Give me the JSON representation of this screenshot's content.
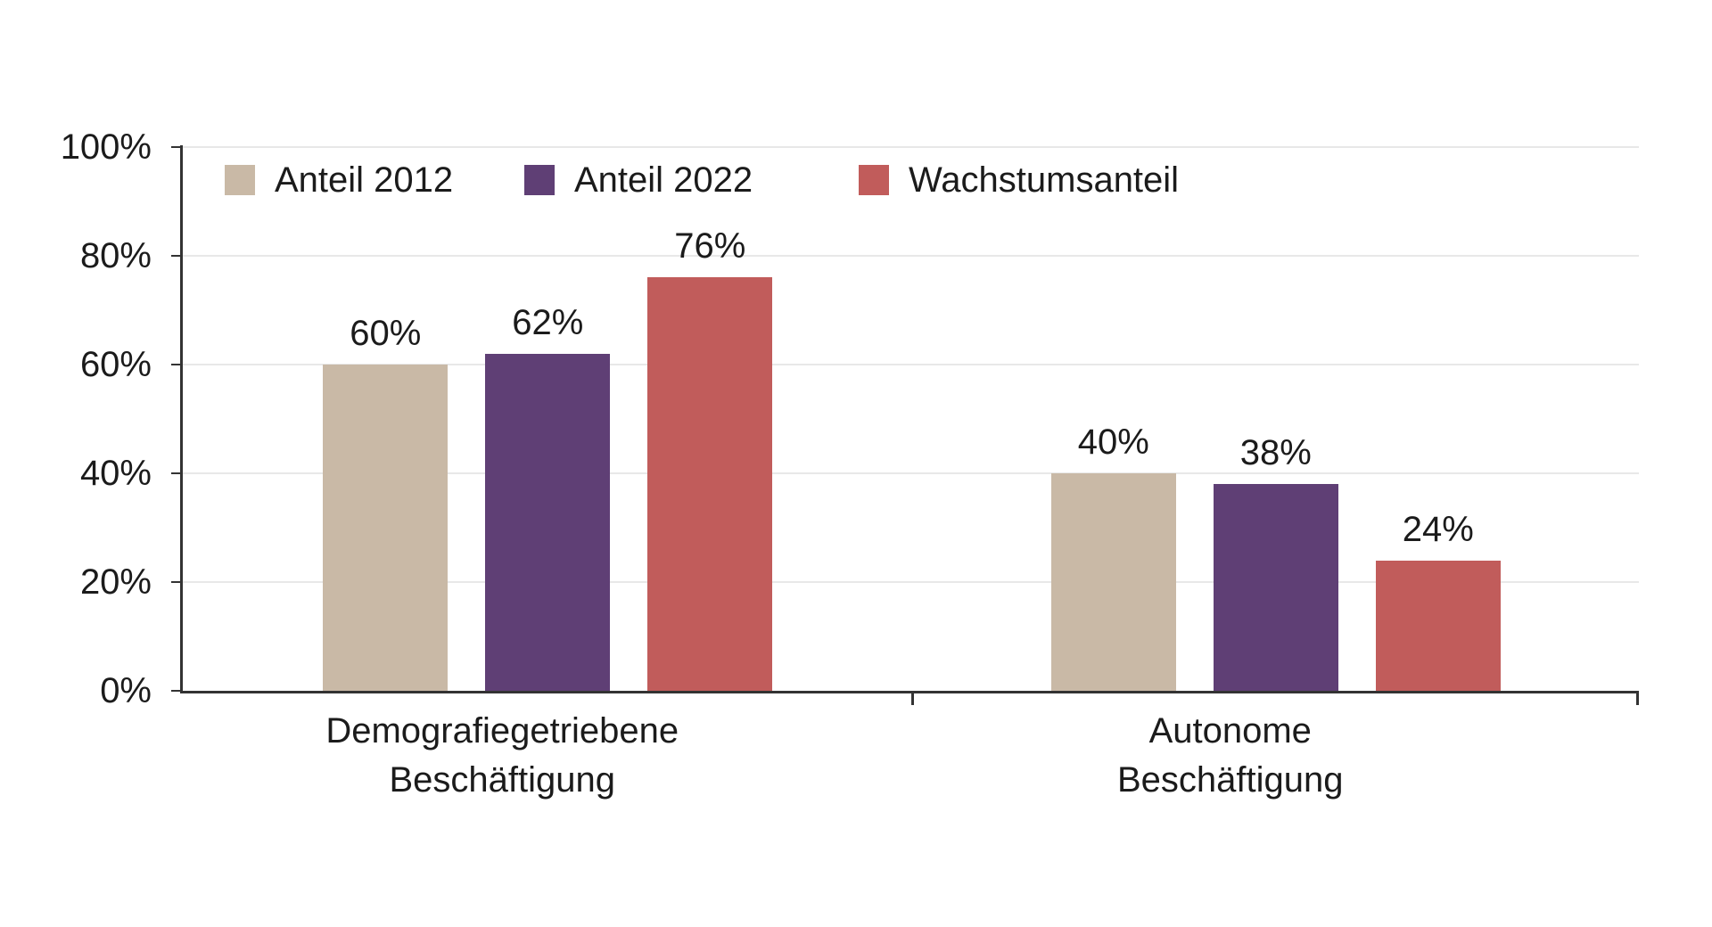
{
  "chart_data": {
    "type": "bar",
    "title": "",
    "xlabel": "",
    "ylabel": "",
    "grid": "horizontal",
    "legend_position": "top-left-inside",
    "background": "#ffffff",
    "categories": [
      {
        "lines": [
          "Demografiegetriebene",
          "Beschäftigung"
        ]
      },
      {
        "lines": [
          "Autonome",
          "Beschäftigung"
        ]
      }
    ],
    "series": [
      {
        "name": "Anteil 2012",
        "color": "#C9B9A6",
        "values": [
          60,
          40
        ],
        "labels": [
          "60%",
          "40%"
        ]
      },
      {
        "name": "Anteil 2022",
        "color": "#5F3F75",
        "values": [
          62,
          38
        ],
        "labels": [
          "62%",
          "38%"
        ]
      },
      {
        "name": "Wachstumsanteil",
        "color": "#C15C5B",
        "values": [
          76,
          24
        ],
        "labels": [
          "76%",
          "24%"
        ]
      }
    ],
    "y_axis": {
      "min": 0,
      "max": 100,
      "ticks": [
        {
          "value": 0,
          "label": "0%"
        },
        {
          "value": 20,
          "label": "20%"
        },
        {
          "value": 40,
          "label": "40%"
        },
        {
          "value": 60,
          "label": "60%"
        },
        {
          "value": 80,
          "label": "80%"
        },
        {
          "value": 100,
          "label": "100%"
        }
      ]
    }
  },
  "colors": {
    "axis": "#333333",
    "gridline": "#e8e8e8",
    "text": "#1b1b1b",
    "background": "#ffffff"
  }
}
